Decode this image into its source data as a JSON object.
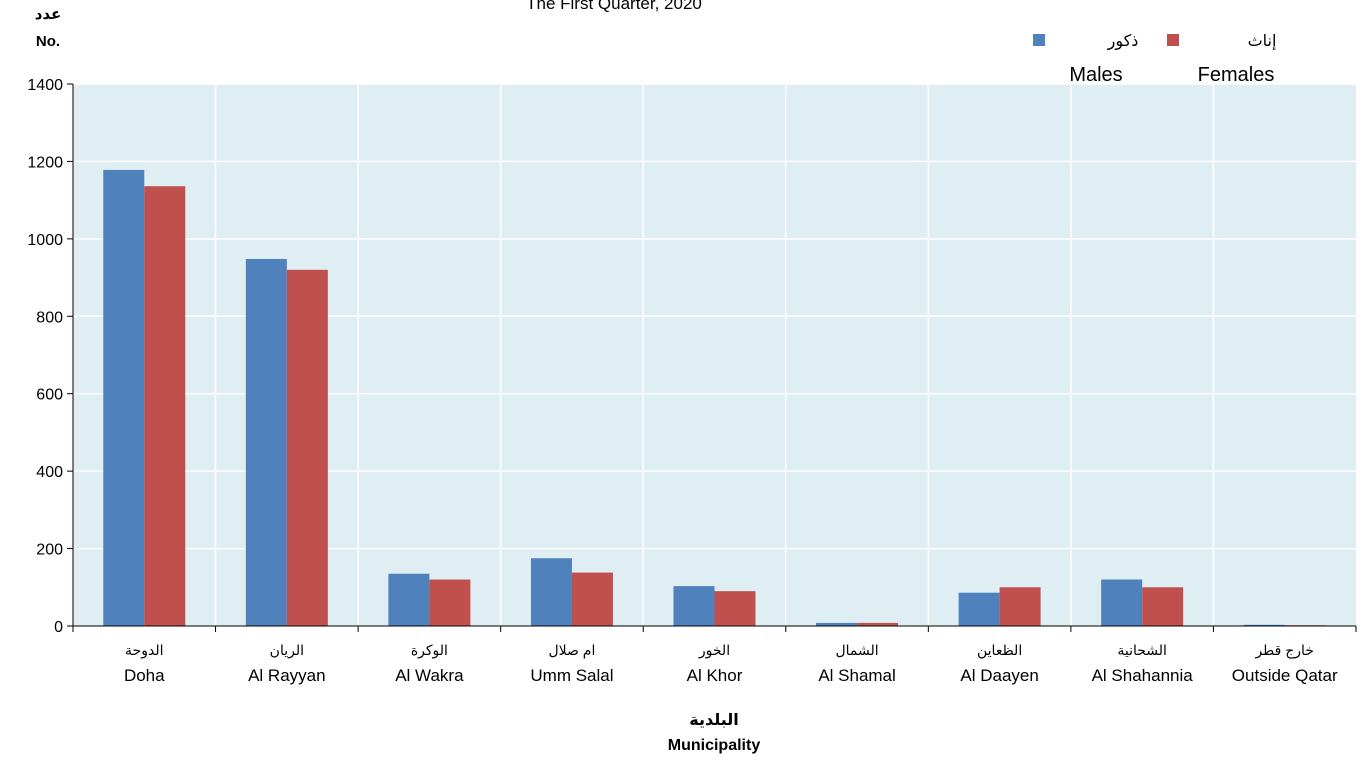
{
  "chart_data": {
    "type": "bar",
    "title": "The First Quarter, 2020",
    "ylabel_ar": "عدد",
    "ylabel": "No.",
    "xlabel_ar": "البلدية",
    "xlabel": "Municipality",
    "ylim": [
      0,
      1400
    ],
    "yticks": [
      0,
      200,
      400,
      600,
      800,
      1000,
      1200,
      1400
    ],
    "grid": true,
    "legend_position": "top-right",
    "categories": [
      "Doha",
      "Al Rayyan",
      "Al Wakra",
      "Umm Salal",
      "Al Khor",
      "Al Shamal",
      "Al Daayen",
      "Al Shahannia",
      "Outside Qatar"
    ],
    "categories_ar": [
      "الدوحة",
      "الريان",
      "الوكرة",
      "ام صلال",
      "الخور",
      "الشمال",
      "الظعاين",
      "الشحانية",
      "خارج قطر"
    ],
    "series": [
      {
        "name": "Males",
        "name_ar": "ذكور",
        "color": "#4F81BD",
        "values": [
          1178,
          948,
          135,
          175,
          103,
          8,
          86,
          120,
          3
        ]
      },
      {
        "name": "Females",
        "name_ar": "إناث",
        "color": "#C0504D",
        "values": [
          1136,
          920,
          120,
          138,
          90,
          8,
          100,
          100,
          2
        ]
      }
    ],
    "plot_background": "#DEEEF3",
    "gridline_color": "#FFFFFF"
  }
}
